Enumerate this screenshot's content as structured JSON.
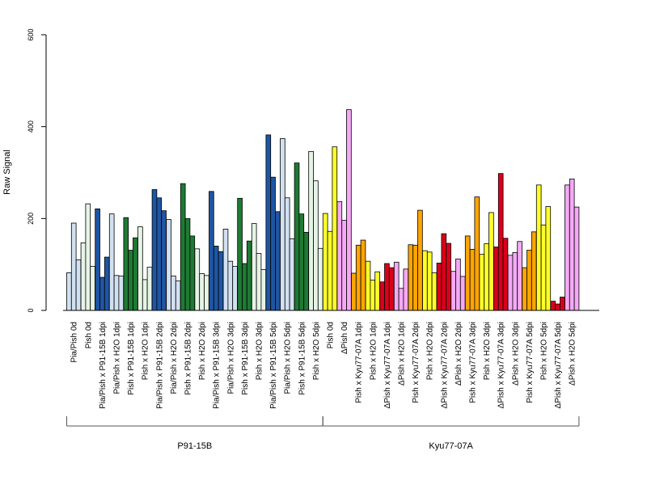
{
  "chart_data": {
    "type": "bar",
    "ylabel": "Raw Signal",
    "ylim": [
      0,
      600
    ],
    "yticks": [
      "0",
      "200",
      "400",
      "600"
    ],
    "colors": {
      "LB": "#d2e1f1",
      "DB": "#1f56a3",
      "LG": "#e6f4e6",
      "DG": "#1f7a33",
      "Y": "#ffff2a",
      "O": "#ffa500",
      "R": "#d9001b",
      "P": "#f5a9f5"
    },
    "groups": [
      {
        "label": "Pia/Pish 0d",
        "values": [
          82,
          190,
          110
        ],
        "color": "LB"
      },
      {
        "label": "Pish 0d",
        "values": [
          147,
          232,
          96
        ],
        "color": "LG"
      },
      {
        "label": "Pia/Pish x P91-15B 1dpi",
        "values": [
          221,
          72,
          116
        ],
        "color": "DB"
      },
      {
        "label": "Pia/Pish x H2O 1dpi",
        "values": [
          210,
          76,
          75
        ],
        "color": "LB"
      },
      {
        "label": "Pish x P91-15B 1dpi",
        "values": [
          202,
          131,
          158
        ],
        "color": "DG"
      },
      {
        "label": "Pish x H2O 1dpi",
        "values": [
          182,
          67,
          94
        ],
        "color": "LG"
      },
      {
        "label": "Pia/Pish x P91-15B 2dpi",
        "values": [
          263,
          245,
          217
        ],
        "color": "DB"
      },
      {
        "label": "Pia/Pish x H2O 2dpi",
        "values": [
          198,
          75,
          64
        ],
        "color": "LB"
      },
      {
        "label": "Pish x P91-15B 2dpi",
        "values": [
          276,
          200,
          162
        ],
        "color": "DG"
      },
      {
        "label": "Pish x H2O 2dpi",
        "values": [
          134,
          80,
          76
        ],
        "color": "LG"
      },
      {
        "label": "Pia/Pish x P91-15B 3dpi",
        "values": [
          259,
          140,
          128
        ],
        "color": "DB"
      },
      {
        "label": "Pia/Pish x H2O 3dpi",
        "values": [
          177,
          107,
          96
        ],
        "color": "LB"
      },
      {
        "label": "Pish x P91-15B 3dpi",
        "values": [
          244,
          102,
          151
        ],
        "color": "DG"
      },
      {
        "label": "Pish x H2O 3dpi",
        "values": [
          189,
          124,
          89
        ],
        "color": "LG"
      },
      {
        "label": "Pia/Pish x P91-15B 5dpi",
        "values": [
          382,
          290,
          215
        ],
        "color": "DB"
      },
      {
        "label": "Pia/Pish x H2O 5dpi",
        "values": [
          374,
          245,
          156
        ],
        "color": "LB"
      },
      {
        "label": "Pish x P91-15B 5dpi",
        "values": [
          321,
          210,
          170
        ],
        "color": "DG"
      },
      {
        "label": "Pish x H2O 5dpi",
        "values": [
          346,
          282,
          135
        ],
        "color": "LG"
      },
      {
        "label": "Pish 0d",
        "values": [
          211,
          172,
          356
        ],
        "color": "Y"
      },
      {
        "label": "ΔPish 0d",
        "values": [
          237,
          196,
          437
        ],
        "color": "P"
      },
      {
        "label": "Pish x Kyu77-07A 1dpi",
        "values": [
          81,
          142,
          153
        ],
        "color": "O"
      },
      {
        "label": "Pish x H2O 1dpi",
        "values": [
          107,
          66,
          84
        ],
        "color": "Y"
      },
      {
        "label": "ΔPish x Kyu77-07A 1dpi",
        "values": [
          62,
          102,
          93
        ],
        "color": "R"
      },
      {
        "label": "ΔPish x H2O 1dpi",
        "values": [
          105,
          48,
          90
        ],
        "color": "P"
      },
      {
        "label": "Pish x Kyu77-07A 2dpi",
        "values": [
          143,
          142,
          218
        ],
        "color": "O"
      },
      {
        "label": "Pish x H2O 2dpi",
        "values": [
          130,
          127,
          82
        ],
        "color": "Y"
      },
      {
        "label": "ΔPish x Kyu77-07A 2dpi",
        "values": [
          103,
          167,
          146
        ],
        "color": "R"
      },
      {
        "label": "ΔPish x H2O 2dpi",
        "values": [
          85,
          112,
          74
        ],
        "color": "P"
      },
      {
        "label": "Pish x Kyu77-07A 3dpi",
        "values": [
          162,
          133,
          247
        ],
        "color": "O"
      },
      {
        "label": "Pish x H2O 3dpi",
        "values": [
          122,
          145,
          213
        ],
        "color": "Y"
      },
      {
        "label": "ΔPish x Kyu77-07A 3dpi",
        "values": [
          138,
          298,
          157
        ],
        "color": "R"
      },
      {
        "label": "ΔPish x H2O 3dpi",
        "values": [
          120,
          126,
          150
        ],
        "color": "P"
      },
      {
        "label": "Pish x Kyu77-07A 5dpi",
        "values": [
          93,
          131,
          171
        ],
        "color": "O"
      },
      {
        "label": "Pish x H2O 5dpi",
        "values": [
          273,
          186,
          226
        ],
        "color": "Y"
      },
      {
        "label": "ΔPish x Kyu77-07A 5dpi",
        "values": [
          20,
          14,
          29
        ],
        "color": "R"
      },
      {
        "label": "ΔPish x H2O 5dpi",
        "values": [
          273,
          286,
          225
        ],
        "color": "P"
      }
    ],
    "brackets": [
      {
        "label": "P91-15B",
        "from": 0,
        "to": 17
      },
      {
        "label": "Kyu77-07A",
        "from": 18,
        "to": 35
      }
    ],
    "grid": false,
    "legend": "none"
  }
}
